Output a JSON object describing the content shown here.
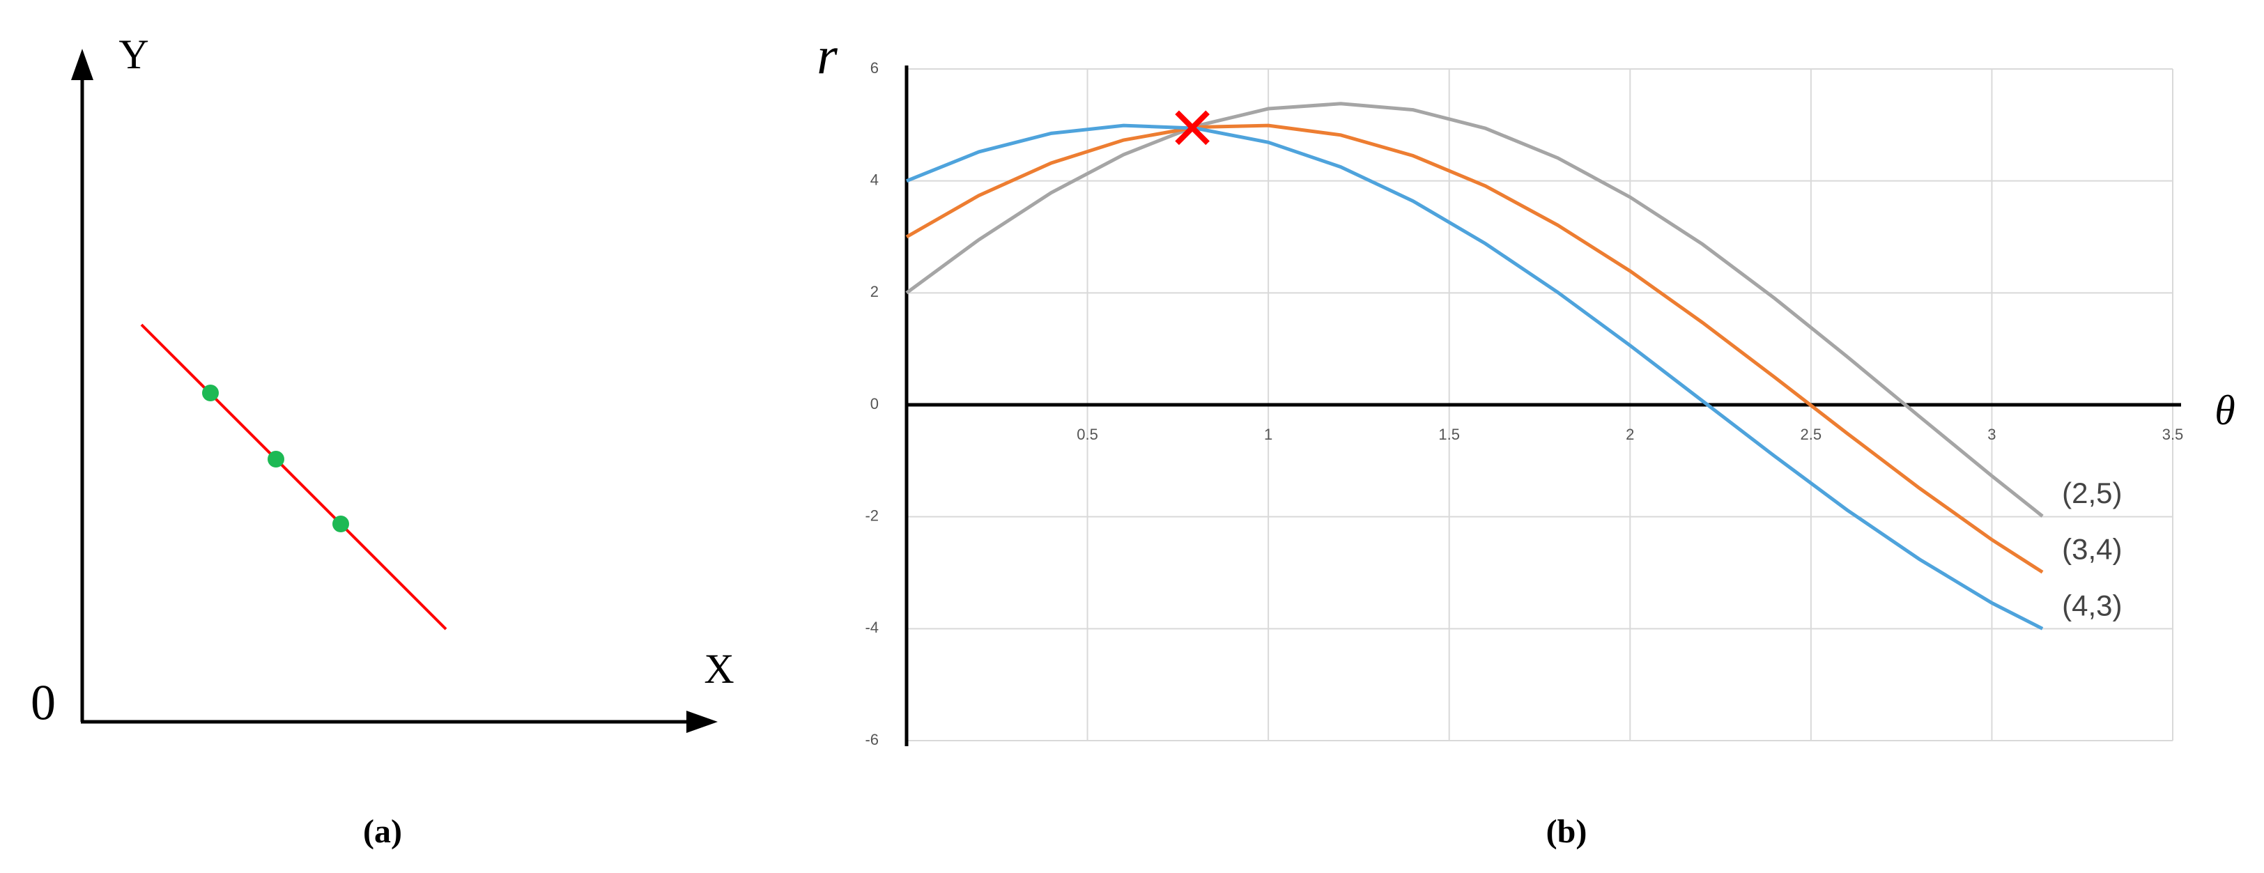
{
  "diagram": {
    "y_label": "Y",
    "x_label": "X",
    "origin_label": "0",
    "caption": "(a)"
  },
  "chart_data": {
    "type": "line",
    "caption": "(b)",
    "y_label": "r",
    "x_label": "θ",
    "x": [
      0,
      0.2,
      0.4,
      0.6,
      0.8,
      1.0,
      1.2,
      1.4,
      1.6,
      1.8,
      2.0,
      2.2,
      2.4,
      2.6,
      2.8,
      3.0,
      3.14
    ],
    "series": [
      {
        "name": "(2,5)",
        "color": "#a5a5a5",
        "values": [
          2,
          2.95,
          3.79,
          4.47,
          4.98,
          5.29,
          5.38,
          5.27,
          4.94,
          4.41,
          3.71,
          2.87,
          1.9,
          0.86,
          -0.21,
          -1.27,
          -1.99
        ]
      },
      {
        "name": "(3,4)",
        "color": "#ed7d31",
        "values": [
          3,
          3.74,
          4.32,
          4.73,
          4.96,
          4.99,
          4.82,
          4.45,
          3.91,
          3.21,
          2.39,
          1.47,
          0.49,
          -0.51,
          -1.49,
          -2.41,
          -2.99
        ]
      },
      {
        "name": "(4,3)",
        "color": "#4ea3dc",
        "values": [
          4,
          4.52,
          4.85,
          4.99,
          4.94,
          4.69,
          4.25,
          3.64,
          2.88,
          2.01,
          1.06,
          0.07,
          -0.92,
          -1.88,
          -2.76,
          -3.54,
          -4.0
        ]
      }
    ],
    "marker": {
      "x": 0.79,
      "y": 4.95,
      "color": "#ff0000"
    },
    "xlim": [
      0,
      3.5
    ],
    "xticks": [
      0.5,
      1,
      1.5,
      2,
      2.5,
      3,
      3.5
    ],
    "ylim": [
      -6,
      6
    ],
    "yticks": [
      -6,
      -4,
      -2,
      0,
      2,
      4,
      6
    ],
    "grid": true
  }
}
